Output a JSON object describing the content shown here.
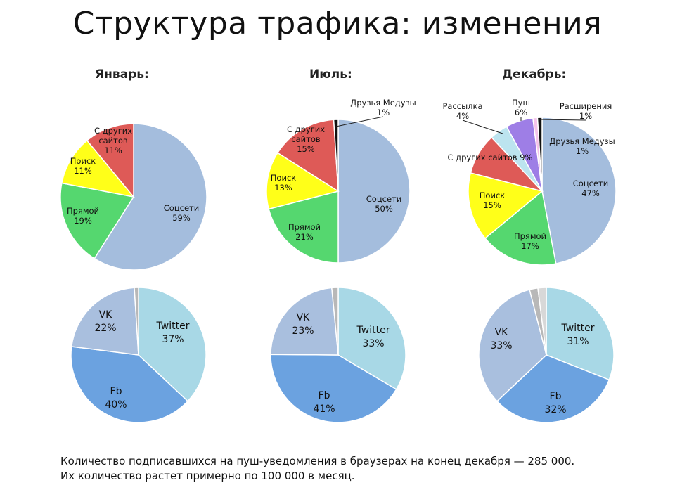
{
  "title": "Структура трафика: изменения",
  "months": [
    "Январь:",
    "Июль:",
    "Декабрь:"
  ],
  "chart_data": [
    {
      "type": "pie",
      "name": "traffic-january",
      "title": "Январь:",
      "slices": [
        {
          "label": "Соцсети",
          "value": 59,
          "value_label": "59%",
          "color": "#A4BDDD"
        },
        {
          "label": "Прямой",
          "value": 19,
          "value_label": "19%",
          "color": "#55D76F"
        },
        {
          "label": "Поиск",
          "value": 11,
          "value_label": "11%",
          "color": "#FFFF19"
        },
        {
          "label": "С других сайтов",
          "value": 11,
          "value_label": "11%",
          "color": "#DE5A57"
        }
      ]
    },
    {
      "type": "pie",
      "name": "traffic-july",
      "title": "Июль:",
      "slices": [
        {
          "label": "Соцсети",
          "value": 50,
          "value_label": "50%",
          "color": "#A4BDDD"
        },
        {
          "label": "Прямой",
          "value": 21,
          "value_label": "21%",
          "color": "#55D76F"
        },
        {
          "label": "Поиск",
          "value": 13,
          "value_label": "13%",
          "color": "#FFFF19"
        },
        {
          "label": "С других сайтов",
          "value": 15,
          "value_label": "15%",
          "color": "#DE5A57"
        },
        {
          "label": "Друзья Медузы",
          "value": 1,
          "value_label": "1%",
          "color": "#111111"
        }
      ]
    },
    {
      "type": "pie",
      "name": "traffic-december",
      "title": "Декабрь:",
      "slices": [
        {
          "label": "Соцсети",
          "value": 47,
          "value_label": "47%",
          "color": "#A4BDDD"
        },
        {
          "label": "Прямой",
          "value": 17,
          "value_label": "17%",
          "color": "#55D76F"
        },
        {
          "label": "Поиск",
          "value": 15,
          "value_label": "15%",
          "color": "#FFFF19"
        },
        {
          "label": "С других сайтов",
          "value": 9,
          "value_label": "9%",
          "color": "#DE5A57"
        },
        {
          "label": "Рассылка",
          "value": 4,
          "value_label": "4%",
          "color": "#BCE4EF"
        },
        {
          "label": "Пуш",
          "value": 6,
          "value_label": "6%",
          "color": "#9E7EE6"
        },
        {
          "label": "Расширения",
          "value": 1,
          "value_label": "1%",
          "color": "#F5C3EA"
        },
        {
          "label": "Друзья Медузы",
          "value": 1,
          "value_label": "1%",
          "color": "#111111"
        }
      ]
    },
    {
      "type": "pie",
      "name": "social-january",
      "slices": [
        {
          "label": "Twitter",
          "value": 37,
          "value_label": "37%",
          "color": "#A8D8E6"
        },
        {
          "label": "Fb",
          "value": 40,
          "value_label": "40%",
          "color": "#6BA2E0"
        },
        {
          "label": "VK",
          "value": 22,
          "value_label": "22%",
          "color": "#A9BFDE"
        },
        {
          "label": "",
          "value": 1,
          "value_label": "",
          "color": "#B8B8B8"
        }
      ]
    },
    {
      "type": "pie",
      "name": "social-july",
      "slices": [
        {
          "label": "Twitter",
          "value": 33,
          "value_label": "33%",
          "color": "#A8D8E6"
        },
        {
          "label": "Fb",
          "value": 41,
          "value_label": "41%",
          "color": "#6BA2E0"
        },
        {
          "label": "VK",
          "value": 23,
          "value_label": "23%",
          "color": "#A9BFDE"
        },
        {
          "label": "",
          "value": 1.5,
          "value_label": "",
          "color": "#B8B8B8"
        }
      ]
    },
    {
      "type": "pie",
      "name": "social-december",
      "slices": [
        {
          "label": "Twitter",
          "value": 31,
          "value_label": "31%",
          "color": "#A8D8E6"
        },
        {
          "label": "Fb",
          "value": 32,
          "value_label": "32%",
          "color": "#6BA2E0"
        },
        {
          "label": "VK",
          "value": 33,
          "value_label": "33%",
          "color": "#A9BFDE"
        },
        {
          "label": "",
          "value": 2,
          "value_label": "",
          "color": "#B8B8B8"
        },
        {
          "label": "",
          "value": 2,
          "value_label": "",
          "color": "#D8D8D8"
        }
      ]
    }
  ],
  "footer": {
    "line1": "Количество подписавшихся на пуш-уведомления в браузерах на конец декабря — 285 000.",
    "line2": "Их количество растет примерно по 100 000 в месяц."
  }
}
